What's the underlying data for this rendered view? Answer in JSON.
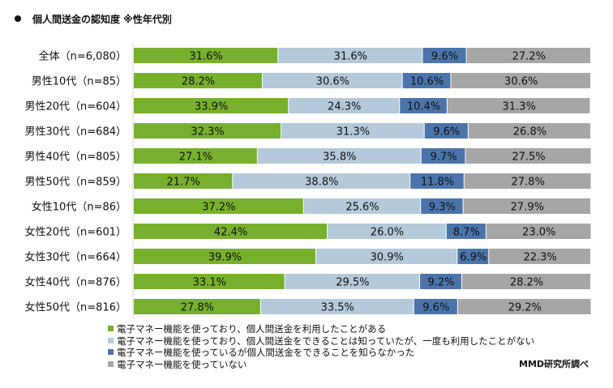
{
  "title": "個人間送金の認知度 ※性年代別",
  "source": "MMD研究所調べ",
  "chart_data": {
    "type": "bar",
    "orientation": "horizontal",
    "stacked": "percent",
    "title": "個人間送金の認知度 ※性年代別",
    "xlabel": "",
    "ylabel": "",
    "xlim": [
      0,
      100
    ],
    "grid": false,
    "legend_position": "bottom-left",
    "categories": [
      "全体（n=6,080）",
      "男性10代（n=85）",
      "男性20代（n=604）",
      "男性30代（n=684）",
      "男性40代（n=805）",
      "男性50代（n=859）",
      "女性10代（n=86）",
      "女性20代（n=601）",
      "女性30代（n=664）",
      "女性40代（n=876）",
      "女性50代（n=816）"
    ],
    "series": [
      {
        "name": "電子マネー機能を使っており、個人間送金を利用したことがある",
        "color": "#77b02c",
        "values": [
          31.6,
          28.2,
          33.9,
          32.3,
          27.1,
          21.7,
          37.2,
          42.4,
          39.9,
          33.1,
          27.8
        ]
      },
      {
        "name": "電子マネー機能を使っており、個人間送金をできることは知っていたが、一度も利用したことがない",
        "color": "#b4c9da",
        "values": [
          31.6,
          30.6,
          24.3,
          31.3,
          35.8,
          38.8,
          25.6,
          26.0,
          30.9,
          29.5,
          33.5
        ]
      },
      {
        "name": "電子マネー機能を使っているが個人間送金をできることを知らなかった",
        "color": "#4a74aa",
        "values": [
          9.6,
          10.6,
          10.4,
          9.6,
          9.7,
          11.8,
          9.3,
          8.7,
          6.9,
          9.2,
          9.6
        ]
      },
      {
        "name": "電子マネー機能を使っていない",
        "color": "#a6a6a6",
        "values": [
          27.2,
          30.6,
          31.3,
          26.8,
          27.5,
          27.8,
          27.9,
          23.0,
          22.3,
          28.2,
          29.2
        ]
      }
    ]
  }
}
